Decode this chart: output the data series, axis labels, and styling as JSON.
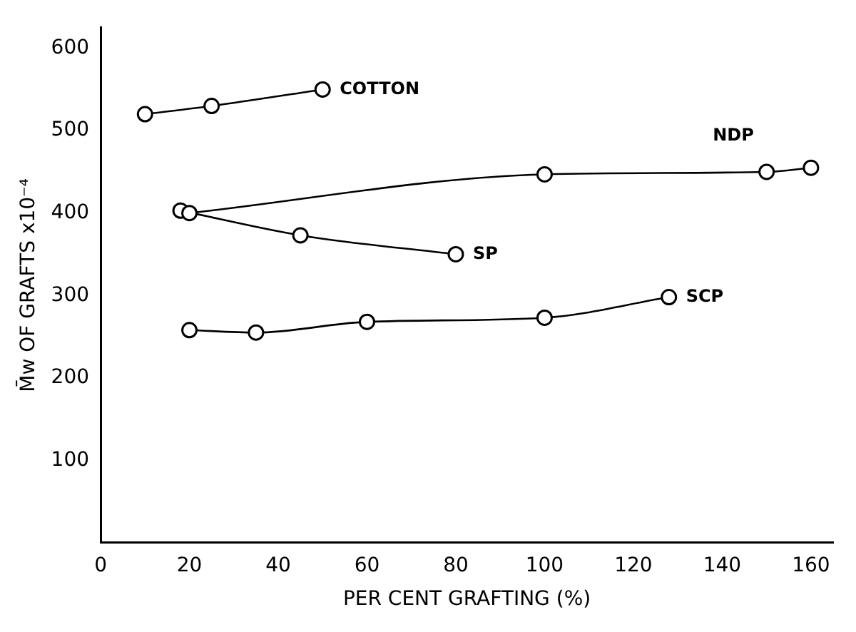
{
  "chart_data": {
    "type": "line",
    "xlabel": "PER CENT GRAFTING (%)",
    "ylabel": "M̄w OF GRAFTS x10⁻⁴",
    "xlim": [
      0,
      165
    ],
    "xticks": [
      0,
      20,
      40,
      60,
      80,
      100,
      120,
      140,
      160
    ],
    "ylim": [
      0,
      625
    ],
    "yticks": [
      100,
      200,
      300,
      400,
      500,
      600
    ],
    "grid": false,
    "legend": false,
    "marker": "circle",
    "series": [
      {
        "name": "COTTON",
        "color": "#000000",
        "x": [
          10,
          25,
          50
        ],
        "values": [
          520,
          530,
          550
        ]
      },
      {
        "name": "NDP",
        "color": "#000000",
        "x": [
          20,
          100,
          150,
          160
        ],
        "values": [
          400,
          447,
          450,
          455
        ]
      },
      {
        "name": "SP",
        "color": "#000000",
        "x": [
          18,
          45,
          80
        ],
        "values": [
          403,
          373,
          350
        ]
      },
      {
        "name": "SCP",
        "color": "#000000",
        "x": [
          20,
          35,
          60,
          100,
          128
        ],
        "values": [
          258,
          255,
          268,
          273,
          298
        ]
      }
    ]
  }
}
